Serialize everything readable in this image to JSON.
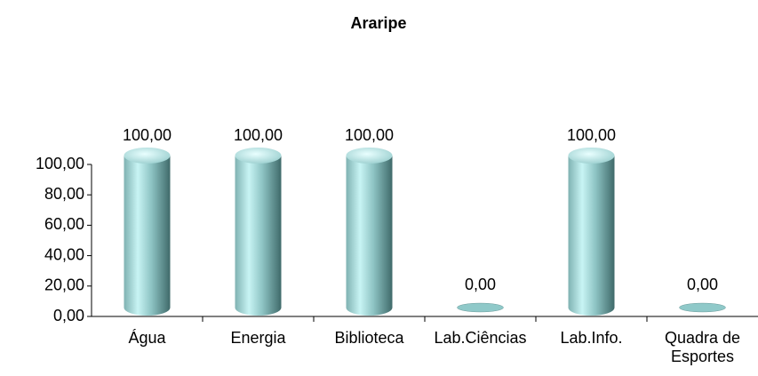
{
  "chart_data": {
    "type": "bar",
    "title": "Araripe",
    "categories": [
      "Água",
      "Energia",
      "Biblioteca",
      "Lab.Ciências",
      "Lab.Info.",
      "Quadra de Esportes"
    ],
    "values": [
      100,
      100,
      100,
      0,
      100,
      0
    ],
    "value_labels": [
      "100,00",
      "100,00",
      "100,00",
      "0,00",
      "100,00",
      "0,00"
    ],
    "color": "#8fc9c9",
    "ylim": [
      0,
      100
    ],
    "yticks": [
      {
        "value": 0,
        "label": "0,00"
      },
      {
        "value": 20,
        "label": "20,00"
      },
      {
        "value": 40,
        "label": "40,00"
      },
      {
        "value": 60,
        "label": "60,00"
      },
      {
        "value": 80,
        "label": "80,00"
      },
      {
        "value": 100,
        "label": "100,00"
      }
    ],
    "grid": false
  }
}
